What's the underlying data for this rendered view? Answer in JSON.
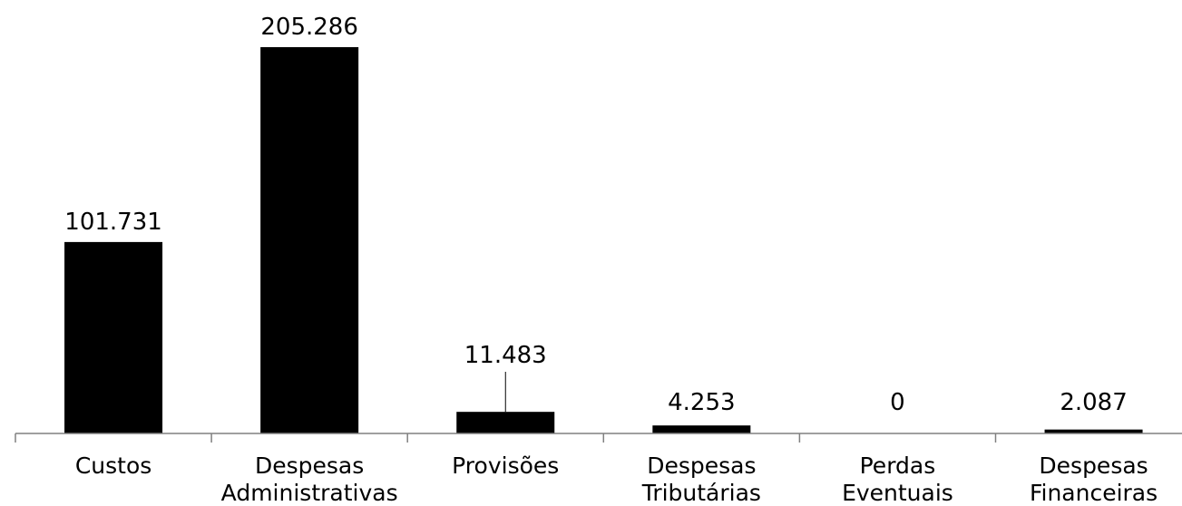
{
  "chart_data": {
    "type": "bar",
    "categories": [
      [
        "Custos"
      ],
      [
        "Despesas",
        "Administrativas"
      ],
      [
        "Provisões"
      ],
      [
        "Despesas",
        "Tributárias"
      ],
      [
        "Perdas",
        "Eventuais"
      ],
      [
        "Despesas",
        "Financeiras"
      ]
    ],
    "values": [
      101731,
      205286,
      11483,
      4253,
      0,
      2087
    ],
    "value_labels": [
      "101.731",
      "205.286",
      "11.483",
      "4.253",
      "0",
      "2.087"
    ],
    "title": "",
    "xlabel": "",
    "ylabel": "",
    "ylim": [
      0,
      205286
    ],
    "grid": false,
    "legend": "none",
    "colors": {
      "bar": "#000000",
      "axis": "#808080",
      "text": "#000000",
      "background": "#ffffff"
    }
  }
}
